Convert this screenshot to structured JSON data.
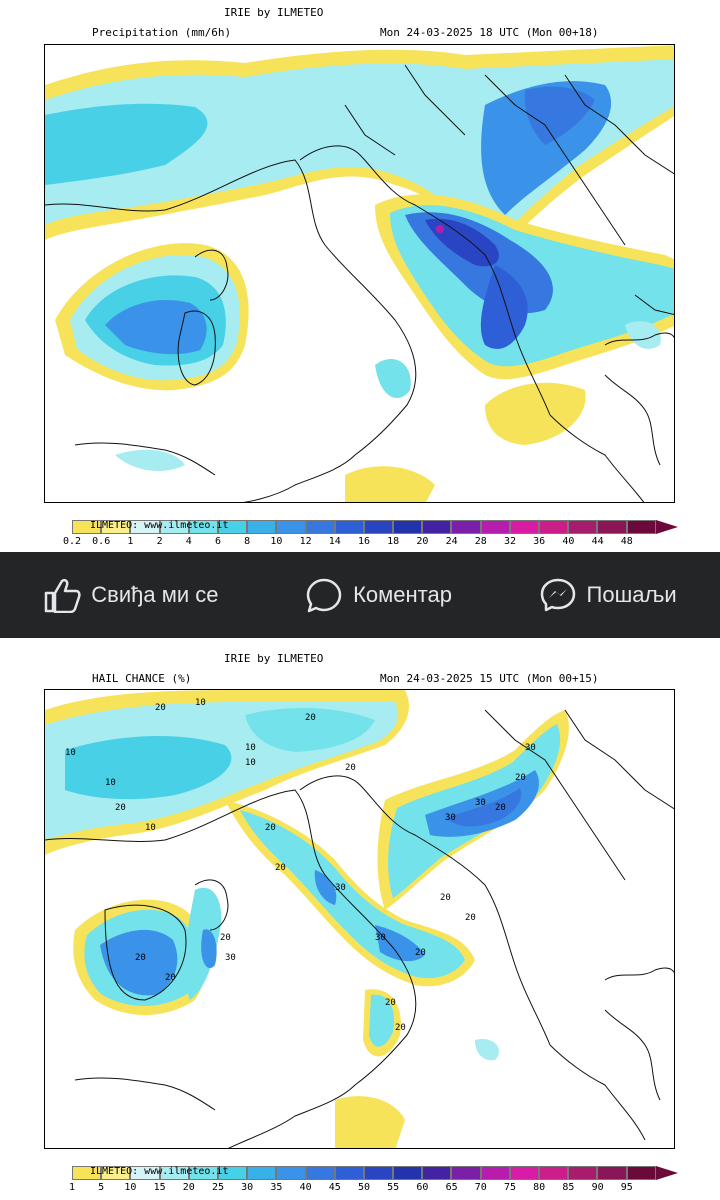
{
  "panel1": {
    "brand": "IRIE by ILMETEO",
    "field": "Precipitation (mm/6h)",
    "valid": "Mon 24-03-2025 18 UTC (Mon 00+18)",
    "watermark": "ILMETEO: www.ilmeteo.it",
    "colorbar": {
      "labels": [
        "0.2",
        "0.6",
        "1",
        "2",
        "4",
        "6",
        "8",
        "10",
        "12",
        "14",
        "16",
        "18",
        "20",
        "24",
        "28",
        "32",
        "36",
        "40",
        "44",
        "48"
      ],
      "colors": [
        "#f7e35a",
        "#fbef8c",
        "#d6f3f6",
        "#a6ecf0",
        "#74e2ea",
        "#48d0e6",
        "#3ab0e8",
        "#3a93e8",
        "#3778e0",
        "#2f5fd6",
        "#2a45c4",
        "#2233ac",
        "#4422a4",
        "#7a1fa8",
        "#b61cae",
        "#d91ca6",
        "#cc1e8a",
        "#a81c6e",
        "#8a1657",
        "#6b0a3a"
      ]
    }
  },
  "panel2": {
    "brand": "IRIE by ILMETEO",
    "field": "HAIL CHANCE (%)",
    "valid": "Mon 24-03-2025 15 UTC (Mon 00+15)",
    "watermark": "ILMETEO: www.ilmeteo.it",
    "colorbar": {
      "labels": [
        "1",
        "5",
        "10",
        "15",
        "20",
        "25",
        "30",
        "35",
        "40",
        "45",
        "50",
        "55",
        "60",
        "65",
        "70",
        "75",
        "80",
        "85",
        "90",
        "95"
      ],
      "colors": [
        "#f7e35a",
        "#fbef8c",
        "#d6f3f6",
        "#a6ecf0",
        "#74e2ea",
        "#48d0e6",
        "#3ab0e8",
        "#3a93e8",
        "#3778e0",
        "#2f5fd6",
        "#2a45c4",
        "#2233ac",
        "#4422a4",
        "#7a1fa8",
        "#b61cae",
        "#d91ca6",
        "#cc1e8a",
        "#a81c6e",
        "#8a1657",
        "#6b0a3a"
      ]
    },
    "contour_labels": [
      "10",
      "20",
      "30"
    ]
  },
  "social": {
    "like": "Свиђа ми се",
    "comment": "Коментар",
    "share": "Пошаљи",
    "icons": [
      "thumbs-up-icon",
      "speech-bubble-icon",
      "messenger-icon"
    ],
    "text_color": "#e4e6eb",
    "bg_color": "#242526"
  }
}
